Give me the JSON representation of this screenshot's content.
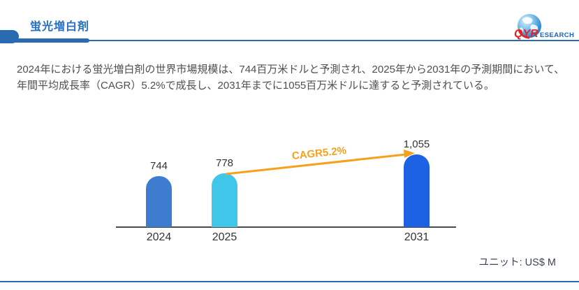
{
  "header": {
    "title": "蛍光増白剤"
  },
  "logo": {
    "qyr": "QYR",
    "esearch": "ESEARCH"
  },
  "summary": {
    "text": "2024年における蛍光増白剤の世界市場規模は、744百万米ドルと予測され、2025年から2031年の予測期間において、年間平均成長率（CAGR）5.2%で成長し、2031年までに1055百万米ドルに達すると予測されている。"
  },
  "chart_data": {
    "type": "bar",
    "categories": [
      "2024",
      "2025",
      "2031"
    ],
    "values": [
      744,
      778,
      1055
    ],
    "value_labels": [
      "744",
      "778",
      "1,055"
    ],
    "annotation": "CAGR5.2%",
    "unit_label": "ユニット: US$ M",
    "bar_colors": [
      "#3d7ccf",
      "#40c6e8",
      "#1e62e4"
    ],
    "annotation_color": "#f7a01d",
    "ylim": [
      0,
      1100
    ],
    "grid": false,
    "legend": "none",
    "title": ""
  },
  "colors": {
    "accent_blue": "#2a6ab0",
    "title_blue": "#2470c2",
    "axis_gray": "#4a4a4a"
  }
}
